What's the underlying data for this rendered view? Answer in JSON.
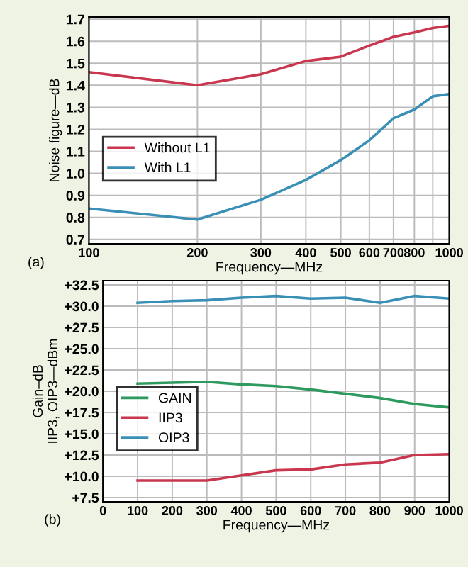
{
  "chart_data": [
    {
      "type": "line",
      "xlabel": "Frequency—MHz",
      "ylabel": "Noise figure—dB",
      "annotations": [
        "(a)"
      ],
      "log": "x",
      "x": [
        100,
        200,
        300,
        400,
        500,
        600,
        700,
        800,
        900,
        1000
      ],
      "series": [
        {
          "name": "Without L1",
          "color": "#c8374d",
          "values": [
            1.46,
            1.4,
            1.45,
            1.51,
            1.53,
            1.58,
            1.62,
            1.64,
            1.66,
            1.67
          ]
        },
        {
          "name": "With L1",
          "color": "#3a8fb7",
          "values": [
            0.84,
            0.79,
            0.88,
            0.97,
            1.06,
            1.15,
            1.25,
            1.29,
            1.35,
            1.36
          ]
        }
      ],
      "xlim": [
        100,
        1000
      ],
      "xticks": [
        100,
        200,
        300,
        400,
        500,
        600,
        700,
        800,
        {
          "value": 900,
          "label": null
        },
        1000
      ],
      "ylim": [
        0.68,
        1.71
      ],
      "yticks": [
        {
          "value": 0.7,
          "label": "0.7"
        },
        {
          "value": 0.8,
          "label": "0.8"
        },
        {
          "value": 0.9,
          "label": "0.9"
        },
        {
          "value": 1.0,
          "label": "1.0"
        },
        {
          "value": 1.1,
          "label": "1.1"
        },
        {
          "value": 1.2,
          "label": "1.2"
        },
        {
          "value": 1.3,
          "label": "1.3"
        },
        {
          "value": 1.4,
          "label": "1.4"
        },
        {
          "value": 1.5,
          "label": "1.5"
        },
        {
          "value": 1.6,
          "label": "1.6"
        },
        {
          "value": 1.7,
          "label": "1.7"
        }
      ],
      "grid": true,
      "legend": "center left"
    },
    {
      "type": "line",
      "xlabel": "Frequency—MHz",
      "ylabel": "Gain–dB\nIIP3, OIP3—dBm",
      "annotations": [
        "(b)"
      ],
      "x": [
        100,
        200,
        300,
        400,
        500,
        600,
        700,
        800,
        900,
        1000
      ],
      "series": [
        {
          "name": "GAIN",
          "color": "#2f9a5e",
          "values": [
            20.9,
            21.0,
            21.1,
            20.8,
            20.6,
            20.2,
            19.7,
            19.2,
            18.5,
            18.1
          ]
        },
        {
          "name": "IIP3",
          "color": "#c8374d",
          "values": [
            9.5,
            9.5,
            9.5,
            10.1,
            10.7,
            10.8,
            11.4,
            11.6,
            12.5,
            12.6
          ]
        },
        {
          "name": "OIP3",
          "color": "#3a8fb7",
          "values": [
            30.4,
            30.6,
            30.7,
            31.0,
            31.2,
            30.9,
            31.0,
            30.4,
            31.2,
            30.9
          ]
        }
      ],
      "xlim": [
        0,
        1000
      ],
      "xticks": [
        0,
        100,
        200,
        300,
        400,
        500,
        600,
        700,
        800,
        900,
        1000
      ],
      "ylim": [
        7,
        33
      ],
      "yticks": [
        {
          "value": 7.5,
          "label": "+7.5"
        },
        {
          "value": 10,
          "label": "+10.0"
        },
        {
          "value": 12.5,
          "label": "+12.5"
        },
        {
          "value": 15,
          "label": "+15.0"
        },
        {
          "value": 17.5,
          "label": "+17.5"
        },
        {
          "value": 20,
          "label": "+20.0"
        },
        {
          "value": 22.5,
          "label": "+22.5"
        },
        {
          "value": 25,
          "label": "+25.0"
        },
        {
          "value": 27.5,
          "label": "+27.5"
        },
        {
          "value": 30,
          "label": "+30.0"
        },
        {
          "value": 32.5,
          "label": "+32.5"
        }
      ],
      "grid": true,
      "legend": "center left"
    }
  ]
}
